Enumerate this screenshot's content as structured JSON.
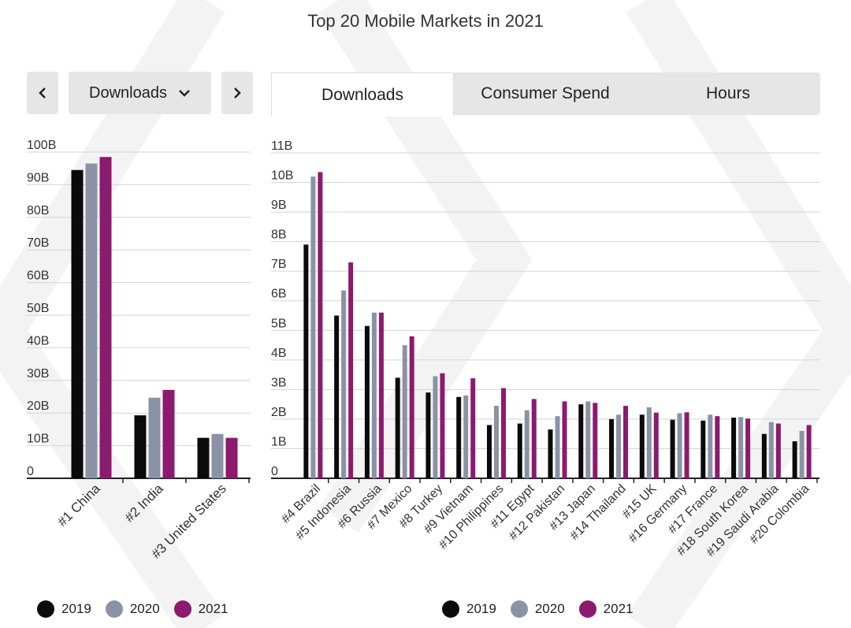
{
  "title": "Top 20 Mobile Markets in 2021",
  "controls": {
    "prev_icon": "chevron-left-icon",
    "next_icon": "chevron-right-icon",
    "dropdown_label": "Downloads",
    "dropdown_icon": "chevron-down-icon"
  },
  "tabs": [
    {
      "label": "Downloads",
      "active": true
    },
    {
      "label": "Consumer Spend",
      "active": false
    },
    {
      "label": "Hours",
      "active": false
    }
  ],
  "colors": {
    "2019": "#0b0b0b",
    "2020": "#8a93a5",
    "2021": "#8c1a6e"
  },
  "legend_left": [
    "2019",
    "2020",
    "2021"
  ],
  "legend_right": [
    "2019",
    "2020",
    "2021"
  ],
  "chart_data": [
    {
      "type": "bar",
      "categories": [
        "#1 China",
        "#2 India",
        "#3 United States"
      ],
      "series": [
        {
          "name": "2019",
          "values": [
            94.5,
            19.3,
            12.4
          ]
        },
        {
          "name": "2020",
          "values": [
            96.5,
            24.7,
            13.6
          ]
        },
        {
          "name": "2021",
          "values": [
            98.5,
            27.1,
            12.4
          ]
        }
      ],
      "ylim": [
        0,
        100
      ],
      "y_ticks": [
        "0",
        "10B",
        "20B",
        "30B",
        "40B",
        "50B",
        "60B",
        "70B",
        "80B",
        "90B",
        "100B"
      ],
      "grid": true
    },
    {
      "type": "bar",
      "categories": [
        "#4 Brazil",
        "#5 Indonesia",
        "#6 Russia",
        "#7 Mexico",
        "#8 Turkey",
        "#9 Vietnam",
        "#10 Philippines",
        "#11 Egypt",
        "#12 Pakistan",
        "#13 Japan",
        "#14 Thailand",
        "#15 UK",
        "#16 Germany",
        "#17 France",
        "#18 South Korea",
        "#19 Saudi Arabia",
        "#20 Colombia"
      ],
      "series": [
        {
          "name": "2019",
          "values": [
            7.9,
            5.5,
            5.15,
            3.4,
            2.9,
            2.75,
            1.8,
            1.85,
            1.65,
            2.5,
            2.0,
            2.15,
            1.98,
            1.95,
            2.05,
            1.5,
            1.25
          ]
        },
        {
          "name": "2020",
          "values": [
            10.2,
            6.35,
            5.6,
            4.5,
            3.45,
            2.8,
            2.45,
            2.3,
            2.1,
            2.6,
            2.15,
            2.4,
            2.2,
            2.15,
            2.07,
            1.9,
            1.6
          ]
        },
        {
          "name": "2021",
          "values": [
            10.35,
            7.3,
            5.6,
            4.8,
            3.55,
            3.38,
            3.05,
            2.68,
            2.6,
            2.55,
            2.45,
            2.22,
            2.23,
            2.1,
            2.02,
            1.85,
            1.8
          ]
        }
      ],
      "ylim": [
        0,
        11
      ],
      "y_ticks": [
        "0",
        "1B",
        "2B",
        "3B",
        "4B",
        "5B",
        "6B",
        "7B",
        "8B",
        "9B",
        "10B",
        "11B"
      ],
      "grid": true
    }
  ]
}
